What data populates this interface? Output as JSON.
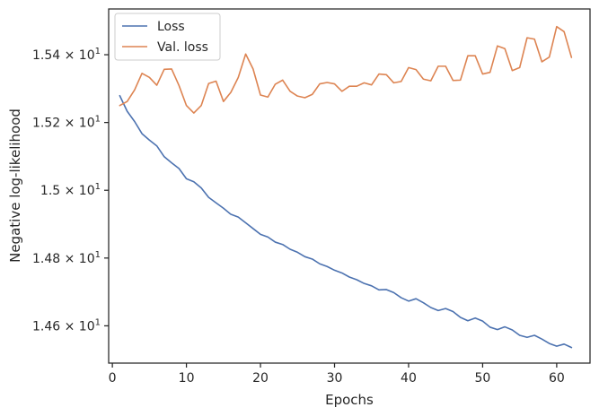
{
  "chart_data": {
    "type": "line",
    "xlabel": "Epochs",
    "ylabel": "Negative log-likelihood",
    "xlim": [
      -0.5,
      64.5
    ],
    "ylim": [
      14.49,
      15.535
    ],
    "yscale": "log",
    "grid": false,
    "legend_position": "upper-left",
    "x_ticks": [
      0,
      10,
      20,
      30,
      40,
      50,
      60
    ],
    "x_tick_labels": [
      "0",
      "10",
      "20",
      "30",
      "40",
      "50",
      "60"
    ],
    "y_ticks": [
      14.6,
      14.8,
      15.0,
      15.2,
      15.4
    ],
    "y_tick_labels": [
      {
        "mantissa": "1.46",
        "base": "10",
        "exp": "1"
      },
      {
        "mantissa": "1.48",
        "base": "10",
        "exp": "1"
      },
      {
        "mantissa": "1.5",
        "base": "10",
        "exp": "1"
      },
      {
        "mantissa": "1.52",
        "base": "10",
        "exp": "1"
      },
      {
        "mantissa": "1.54",
        "base": "10",
        "exp": "1"
      }
    ],
    "x": [
      1,
      2,
      3,
      4,
      5,
      6,
      7,
      8,
      9,
      10,
      11,
      12,
      13,
      14,
      15,
      16,
      17,
      18,
      19,
      20,
      21,
      22,
      23,
      24,
      25,
      26,
      27,
      28,
      29,
      30,
      31,
      32,
      33,
      34,
      35,
      36,
      37,
      38,
      39,
      40,
      41,
      42,
      43,
      44,
      45,
      46,
      47,
      48,
      49,
      50,
      51,
      52,
      53,
      54,
      55,
      56,
      57,
      58,
      59,
      60,
      61,
      62
    ],
    "series": [
      {
        "name": "Loss",
        "color": "#4c72b0",
        "values": [
          15.279,
          15.233,
          15.203,
          15.167,
          15.148,
          15.131,
          15.099,
          15.081,
          15.064,
          15.034,
          15.025,
          15.007,
          14.979,
          14.963,
          14.947,
          14.929,
          14.921,
          14.904,
          14.887,
          14.87,
          14.862,
          14.847,
          14.84,
          14.826,
          14.817,
          14.804,
          14.797,
          14.783,
          14.775,
          14.764,
          14.756,
          14.744,
          14.736,
          14.725,
          14.718,
          14.706,
          14.707,
          14.698,
          14.683,
          14.673,
          14.68,
          14.668,
          14.654,
          14.645,
          14.651,
          14.642,
          14.625,
          14.615,
          14.623,
          14.614,
          14.596,
          14.589,
          14.597,
          14.588,
          14.572,
          14.566,
          14.572,
          14.561,
          14.548,
          14.54,
          14.546,
          14.536
        ]
      },
      {
        "name": "Val. loss",
        "color": "#dd8452",
        "values": [
          15.25,
          15.262,
          15.296,
          15.345,
          15.333,
          15.31,
          15.357,
          15.358,
          15.309,
          15.25,
          15.228,
          15.25,
          15.315,
          15.322,
          15.262,
          15.289,
          15.333,
          15.402,
          15.358,
          15.281,
          15.275,
          15.313,
          15.325,
          15.292,
          15.278,
          15.273,
          15.283,
          15.314,
          15.318,
          15.314,
          15.292,
          15.307,
          15.307,
          15.317,
          15.311,
          15.343,
          15.341,
          15.317,
          15.321,
          15.362,
          15.356,
          15.328,
          15.323,
          15.366,
          15.366,
          15.324,
          15.325,
          15.397,
          15.397,
          15.343,
          15.348,
          15.426,
          15.418,
          15.353,
          15.362,
          15.45,
          15.446,
          15.379,
          15.393,
          15.483,
          15.468,
          15.392
        ]
      }
    ]
  }
}
